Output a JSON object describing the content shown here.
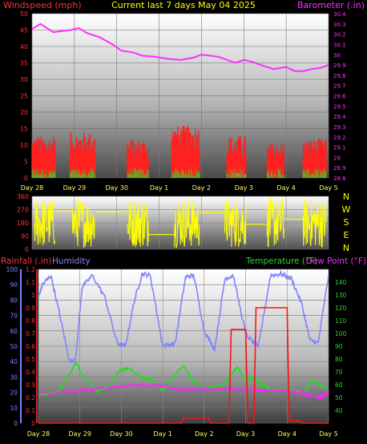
{
  "header": {
    "left_label": "Windspeed (mph)",
    "title": "Current last 7 days May 04 2025",
    "right_label": "Barometer (.in)"
  },
  "colors": {
    "wind": "#ff2020",
    "gust": "#22ee22",
    "barometer": "#ff30ff",
    "direction": "#ffff00",
    "humidity": "#7f84ff",
    "temperature": "#22dd22",
    "dewpoint": "#ff22ff",
    "rain": "#ff1111",
    "label_red": "#ff3333",
    "tick_day": "#ffff66"
  },
  "day_labels": [
    "Day 28",
    "Day 29",
    "Day 30",
    "Day 1",
    "Day 2",
    "Day 3",
    "Day 4",
    "Day 5"
  ],
  "direction_labels": [
    "N",
    "W",
    "S",
    "E",
    "N"
  ],
  "lower_labels": {
    "rain": "Rainfall (.in)",
    "humidity": "Humidity",
    "temperature": "Temperature (°F)",
    "dewpoint": "Dew Point (°F)"
  },
  "chart_data": [
    {
      "type": "line",
      "panel": "wind-barometer",
      "y_left": {
        "ticks": [
          0,
          5,
          10,
          15,
          20,
          25,
          30,
          35,
          40,
          45,
          50
        ],
        "ylim": [
          0,
          50
        ]
      },
      "y_right": {
        "ticks": [
          "28.8",
          "28.9",
          "29",
          "29.1",
          "29.2",
          "29.3",
          "29.4",
          "29.5",
          "29.6",
          "29.7",
          "29.8",
          "29.9",
          "30",
          "30.1",
          "30.2",
          "30.3",
          "30.4"
        ],
        "ylim": [
          28.8,
          30.4
        ]
      },
      "series": [
        {
          "key": "barometer",
          "axis": "right",
          "x": [
            0,
            0.2,
            0.5,
            0.9,
            1.1,
            1.3,
            1.6,
            1.9,
            2.1,
            2.4,
            2.6,
            2.9,
            3.2,
            3.5,
            3.8,
            4.0,
            4.2,
            4.4,
            4.6,
            4.8,
            5.0,
            5.2,
            5.4,
            5.7,
            6.0,
            6.2,
            6.4,
            6.6,
            6.8,
            7.0
          ],
          "y": [
            30.25,
            30.3,
            30.22,
            30.24,
            30.26,
            30.21,
            30.17,
            30.1,
            30.04,
            30.02,
            29.99,
            29.98,
            29.96,
            29.95,
            29.97,
            30.0,
            29.99,
            29.98,
            29.95,
            29.92,
            29.95,
            29.93,
            29.9,
            29.86,
            29.88,
            29.84,
            29.84,
            29.86,
            29.87,
            29.9
          ]
        },
        {
          "key": "wind_clusters",
          "axis": "left",
          "clusters": [
            [
              0.0,
              0.55,
              5,
              13
            ],
            [
              0.9,
              1.5,
              6,
              14
            ],
            [
              2.25,
              2.75,
              4,
              12
            ],
            [
              3.3,
              3.95,
              7,
              16
            ],
            [
              4.6,
              5.05,
              5,
              13
            ],
            [
              5.55,
              5.95,
              4,
              11
            ],
            [
              6.4,
              6.95,
              5,
              12
            ]
          ]
        }
      ]
    },
    {
      "type": "scatter",
      "panel": "wind-direction",
      "y": {
        "ticks": [
          0,
          90,
          180,
          270,
          360
        ],
        "ylim": [
          0,
          360
        ]
      }
    },
    {
      "type": "line",
      "panel": "rain-humidity-temperature",
      "y_left_humidity": {
        "ticks": [
          0,
          10,
          20,
          30,
          40,
          50,
          60,
          70,
          80,
          90,
          100
        ],
        "ylim": [
          0,
          100
        ]
      },
      "y_left_rain": {
        "ticks": [
          "0",
          "0.1",
          "0.2",
          "0.3",
          "0.4",
          "0.5",
          "0.6",
          "0.7",
          "0.8",
          "0.9",
          "1",
          "1.1",
          "1.2"
        ],
        "ylim": [
          0,
          1.2
        ]
      },
      "y_right_temp": {
        "ticks": [
          40,
          50,
          60,
          70,
          80,
          90,
          100,
          110,
          120,
          130,
          140
        ],
        "ylim": [
          30,
          150
        ]
      },
      "series": [
        {
          "key": "humidity",
          "x": [
            0,
            0.1,
            0.3,
            0.55,
            0.75,
            0.9,
            1.05,
            1.3,
            1.6,
            1.9,
            2.1,
            2.3,
            2.5,
            2.7,
            3.0,
            3.3,
            3.55,
            3.75,
            4.0,
            4.25,
            4.5,
            4.7,
            5.0,
            5.3,
            5.6,
            5.85,
            6.1,
            6.35,
            6.55,
            6.75,
            7.0
          ],
          "y": [
            82,
            90,
            96,
            66,
            40,
            42,
            88,
            96,
            82,
            52,
            50,
            78,
            97,
            96,
            50,
            52,
            95,
            96,
            60,
            48,
            94,
            96,
            58,
            49,
            96,
            97,
            94,
            78,
            54,
            52,
            96
          ]
        },
        {
          "key": "temperature",
          "x": [
            0,
            0.25,
            0.5,
            0.7,
            0.9,
            1.1,
            1.4,
            1.7,
            1.95,
            2.2,
            2.5,
            2.75,
            3.0,
            3.2,
            3.5,
            3.7,
            3.95,
            4.2,
            4.5,
            4.65,
            4.8,
            5.0,
            5.2,
            5.4,
            5.65,
            5.9,
            6.2,
            6.4,
            6.6,
            6.8,
            7.0
          ],
          "y": [
            52,
            53,
            55,
            65,
            77,
            66,
            55,
            59,
            71,
            73,
            65,
            64,
            56,
            64,
            75,
            64,
            58,
            58,
            61,
            68,
            73,
            64,
            65,
            60,
            55,
            57,
            56,
            53,
            63,
            60,
            55
          ]
        },
        {
          "key": "dewpoint",
          "x": [
            0,
            0.5,
            1.0,
            1.5,
            2.0,
            2.5,
            3.0,
            3.5,
            4.0,
            4.5,
            5.0,
            5.5,
            6.0,
            6.3,
            6.5,
            6.8,
            7.0
          ],
          "y": [
            53,
            54,
            55,
            57,
            59,
            60,
            59,
            56,
            57,
            57,
            56,
            55,
            56,
            54,
            52,
            50,
            54
          ]
        },
        {
          "key": "rain",
          "x": [
            0,
            3.45,
            3.5,
            4.1,
            4.15,
            4.6,
            4.65,
            5.0,
            5.05,
            5.2,
            5.25,
            6.0,
            6.05,
            6.3,
            6.35,
            7.0
          ],
          "y": [
            0,
            0,
            0.04,
            0.04,
            0,
            0,
            0.73,
            0.73,
            0,
            0,
            0.9,
            0.9,
            0.02,
            0.02,
            0,
            0
          ]
        }
      ]
    }
  ]
}
